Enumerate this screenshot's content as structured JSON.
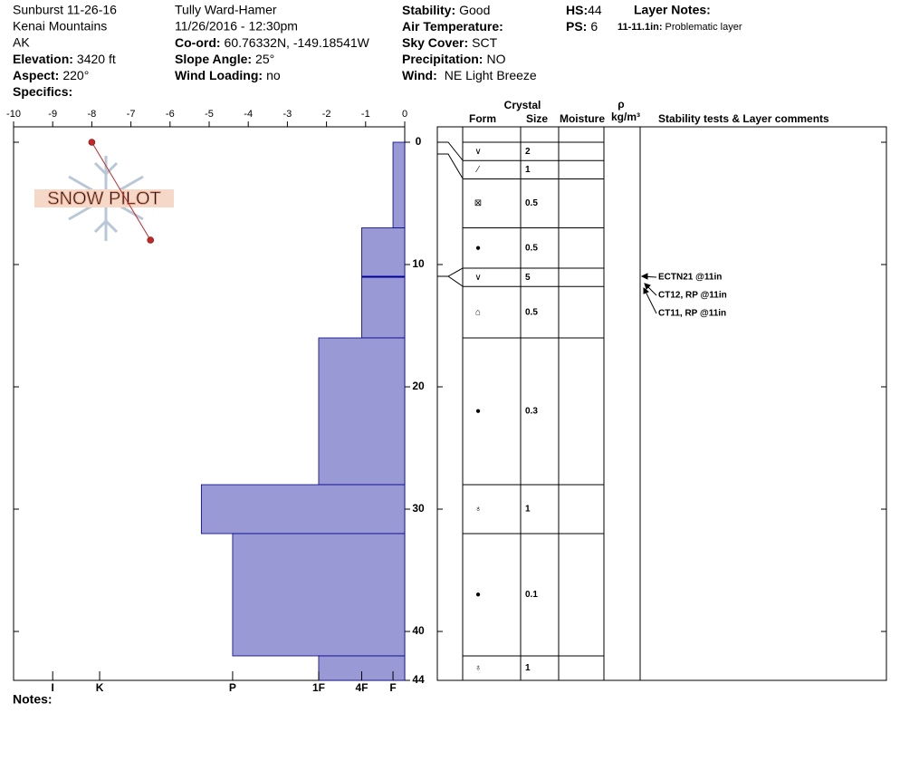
{
  "header": {
    "site": "Sunburst 11-26-16",
    "range": "Kenai Mountains",
    "state": "AK",
    "elevation": {
      "label": "Elevation:",
      "value": "3420 ft"
    },
    "aspect": {
      "label": "Aspect:",
      "value": "220°"
    },
    "specifics": {
      "label": "Specifics:"
    },
    "observer": "Tully Ward-Hamer",
    "datetime": "11/26/2016 - 12:30pm",
    "coord": {
      "label": "Co-ord:",
      "value": "60.76332N, -149.18541W"
    },
    "slope": {
      "label": "Slope Angle:",
      "value": "25°"
    },
    "wind_loading": {
      "label": "Wind Loading:",
      "value": "no"
    },
    "stability": {
      "label": "Stability:",
      "value": "Good"
    },
    "air_temp": {
      "label": "Air Temperature:"
    },
    "sky": {
      "label": "Sky Cover:",
      "value": "SCT"
    },
    "precip": {
      "label": "Precipitation:",
      "value": "NO"
    },
    "wind": {
      "label": "Wind:",
      "value": "NE Light Breeze"
    },
    "hs": {
      "label": "HS:",
      "value": 44
    },
    "ps": {
      "label": "PS:",
      "value": 6
    },
    "layer_notes": {
      "title": "Layer Notes:",
      "label": "11-11.1in:",
      "value": "Problematic layer"
    }
  },
  "notes": "Notes:",
  "chart_data": {
    "type": "snow-profile",
    "watermark": "SNOW PILOT",
    "xlim": [
      -10,
      0
    ],
    "xticks": [
      -10,
      -9,
      -8,
      -7,
      -6,
      -5,
      -4,
      -3,
      -2,
      -1,
      0
    ],
    "ylim": [
      0,
      44
    ],
    "yticks": [
      0,
      10,
      20,
      30,
      40,
      44
    ],
    "x2lim": [
      10,
      0
    ],
    "x2ticks": [
      {
        "value": 9,
        "label": "I"
      },
      {
        "value": 7.8,
        "label": "K"
      },
      {
        "value": 4.4,
        "label": "P"
      },
      {
        "value": 2.2,
        "label": "1F"
      },
      {
        "value": 1.1,
        "label": "4F"
      },
      {
        "value": 0.3,
        "label": "F"
      }
    ],
    "hardness": {
      "color": "#9999d6",
      "top": [
        0,
        7,
        16,
        28,
        32,
        42
      ],
      "bottom": [
        7,
        16,
        28,
        32,
        42,
        44
      ],
      "values": [
        0.3,
        1.1,
        2.2,
        5.2,
        4.4,
        2.2
      ]
    },
    "problem_layer": 11,
    "temperature": {
      "color": "#c0282a",
      "depth": [
        0,
        8
      ],
      "values": [
        -8,
        -6.5
      ]
    }
  },
  "table": {
    "crystal": "Crystal",
    "form": "Form",
    "size": "Size",
    "moisture": "Moisture",
    "rho": "ρ",
    "density_unit": "kg/m³",
    "comments": "Stability tests & Layer comments",
    "layers": [
      {
        "top": 0,
        "bottom": 1.5,
        "form": "∨",
        "size": 2
      },
      {
        "top": 1.5,
        "bottom": 3,
        "form": "⁄",
        "size": 1
      },
      {
        "top": 3,
        "bottom": 7,
        "form": "⊠",
        "size": 0.5
      },
      {
        "top": 7,
        "bottom": 10.3,
        "form": "●",
        "size": 0.5
      },
      {
        "top": 10.3,
        "bottom": 11.8,
        "form": "∨",
        "size": 5
      },
      {
        "top": 11.8,
        "bottom": 16,
        "form": "⌂",
        "size": 0.5
      },
      {
        "top": 16,
        "bottom": 28,
        "form": "●",
        "size": 0.3
      },
      {
        "top": 28,
        "bottom": 32,
        "form": "♁",
        "size": 1
      },
      {
        "top": 32,
        "bottom": 42,
        "form": "●",
        "size": 0.1
      },
      {
        "top": 42,
        "bottom": 44,
        "form": "♁",
        "size": 1
      }
    ],
    "tests": [
      "ECTN21 @11in",
      "CT12, RP @11in",
      "CT11, RP @11in"
    ]
  }
}
